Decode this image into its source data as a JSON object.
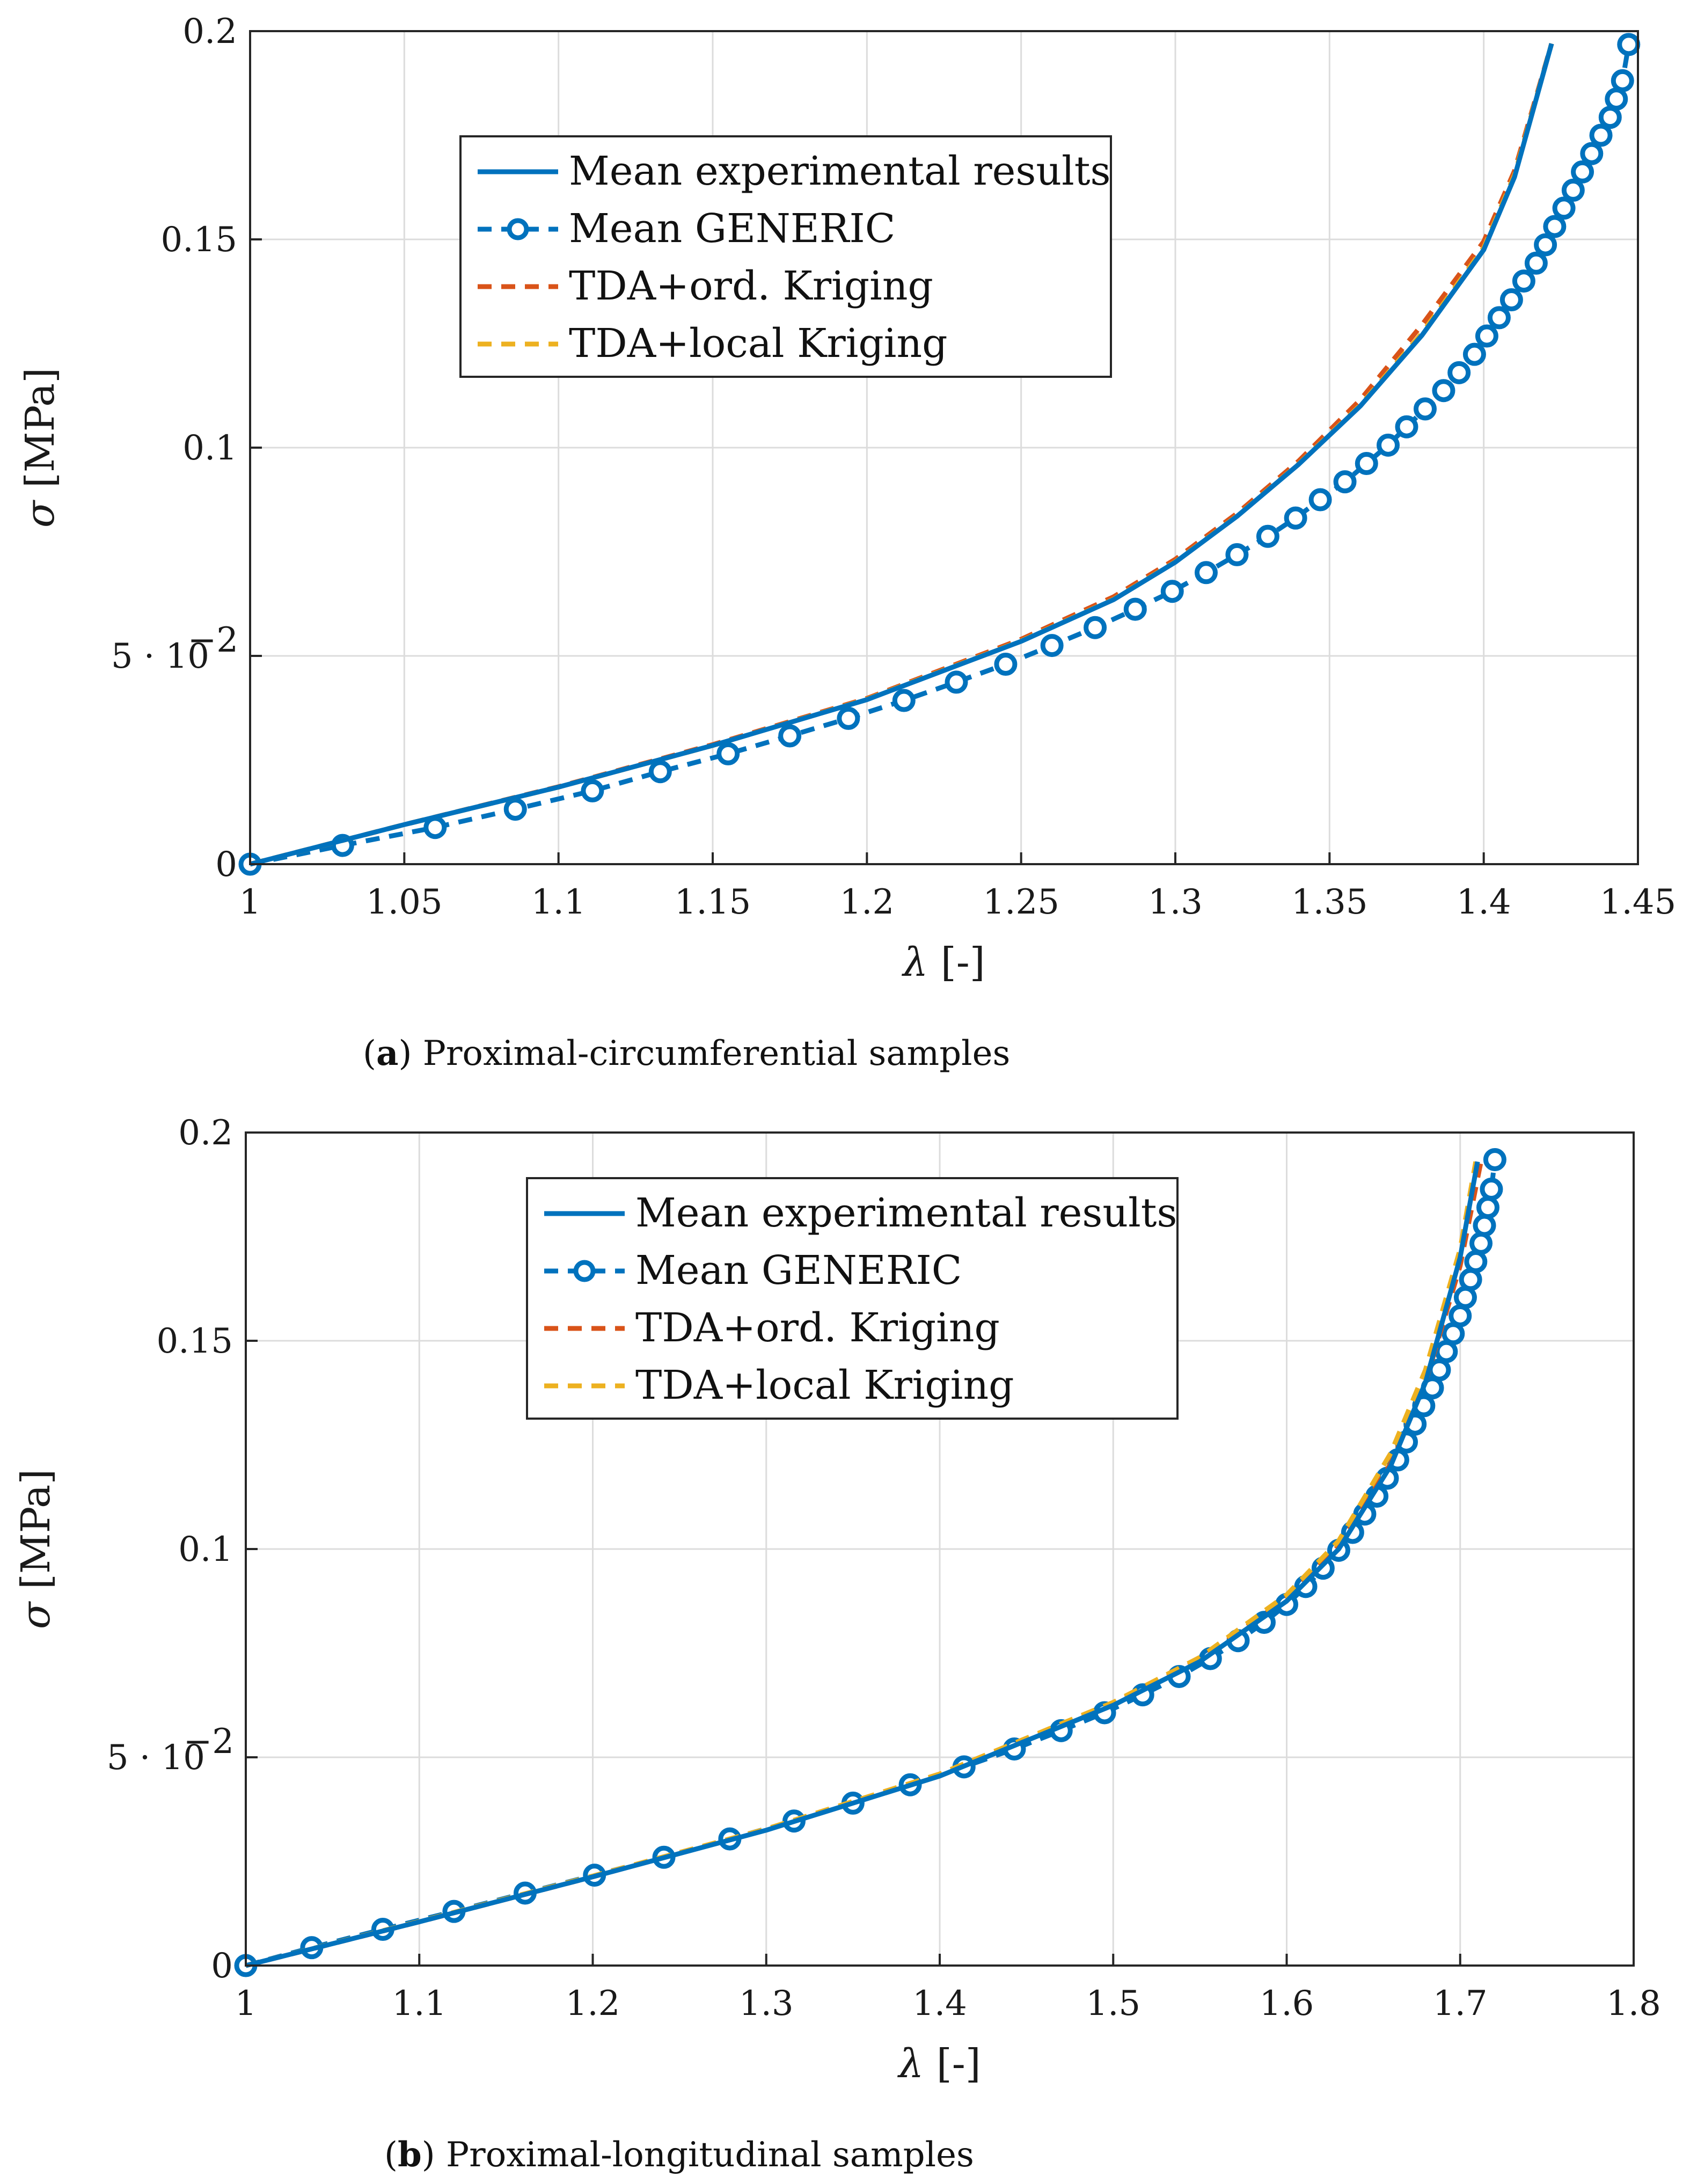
{
  "colors": {
    "experimental": "#0072BD",
    "generic": "#0072BD",
    "ordinary_kriging": "#D95319",
    "local_kriging": "#EDB120",
    "grid": "#dcdcdc",
    "frame": "#262626"
  },
  "chart_data": [
    {
      "type": "line",
      "caption_letter": "a",
      "caption_text": "Proximal-circumferential samples",
      "xlabel_sym": "λ",
      "xlabel_unit": "[-]",
      "ylabel_sym": "σ",
      "ylabel_unit": "[MPa]",
      "xlim": [
        1,
        1.45
      ],
      "ylim": [
        0,
        0.2
      ],
      "xticks": [
        1,
        1.05,
        1.1,
        1.15,
        1.2,
        1.25,
        1.3,
        1.35,
        1.4,
        1.45
      ],
      "xtick_labels": [
        "1",
        "1.05",
        "1.1",
        "1.15",
        "1.2",
        "1.25",
        "1.3",
        "1.35",
        "1.4",
        "1.45"
      ],
      "yticks": [
        0,
        0.05,
        0.1,
        0.15,
        0.2
      ],
      "ytick_labels": [
        "0",
        "5 · 10",
        "0.1",
        "0.15",
        "0.2"
      ],
      "ytick_exponents": [
        "",
        "−2",
        "",
        "",
        ""
      ],
      "legend": {
        "position": "top-left",
        "entries": [
          "Mean experimental results",
          "Mean GENERIC",
          "TDA+ord. Kriging",
          "TDA+local Kriging"
        ]
      },
      "series": [
        {
          "name": "Mean experimental results",
          "style": "solid",
          "x": [
            1.0,
            1.05,
            1.1,
            1.15,
            1.2,
            1.25,
            1.28,
            1.3,
            1.32,
            1.34,
            1.36,
            1.38,
            1.4,
            1.41,
            1.422
          ],
          "y": [
            0.0,
            0.0095,
            0.0185,
            0.0285,
            0.0395,
            0.0535,
            0.0635,
            0.0725,
            0.0835,
            0.096,
            0.11,
            0.127,
            0.1475,
            0.165,
            0.197
          ]
        },
        {
          "name": "Mean GENERIC",
          "style": "dashed-circle",
          "x": [
            1.0,
            1.03,
            1.06,
            1.086,
            1.111,
            1.133,
            1.155,
            1.175,
            1.194,
            1.212,
            1.229,
            1.245,
            1.26,
            1.274,
            1.287,
            1.299,
            1.31,
            1.32,
            1.33,
            1.339,
            1.347,
            1.355,
            1.362,
            1.369,
            1.375,
            1.381,
            1.387,
            1.392,
            1.397,
            1.401,
            1.405,
            1.409,
            1.413,
            1.417,
            1.42,
            1.423,
            1.426,
            1.429,
            1.432,
            1.435,
            1.438,
            1.441,
            1.443,
            1.445,
            1.447
          ],
          "y": [
            0.0,
            0.0045,
            0.0088,
            0.0132,
            0.0176,
            0.0222,
            0.0265,
            0.0308,
            0.035,
            0.0393,
            0.0437,
            0.048,
            0.0525,
            0.0568,
            0.0612,
            0.0655,
            0.07,
            0.0743,
            0.0787,
            0.0831,
            0.0875,
            0.0918,
            0.0962,
            0.1006,
            0.105,
            0.1093,
            0.1137,
            0.118,
            0.1224,
            0.1268,
            0.1312,
            0.1355,
            0.14,
            0.1443,
            0.1487,
            0.1531,
            0.1575,
            0.1618,
            0.1662,
            0.1706,
            0.175,
            0.1793,
            0.1837,
            0.1881,
            0.1968
          ]
        },
        {
          "name": "TDA+ord. Kriging",
          "style": "dashed",
          "x": [
            1.0,
            1.05,
            1.1,
            1.15,
            1.2,
            1.25,
            1.28,
            1.3,
            1.32,
            1.34,
            1.36,
            1.38,
            1.4,
            1.41,
            1.422
          ],
          "y": [
            0.0,
            0.0095,
            0.0186,
            0.0287,
            0.0398,
            0.054,
            0.0642,
            0.0732,
            0.0842,
            0.0968,
            0.1115,
            0.1295,
            0.1495,
            0.1665,
            0.197
          ]
        },
        {
          "name": "TDA+local Kriging",
          "style": "dashed",
          "x": [
            1.0,
            1.05,
            1.1,
            1.15,
            1.2,
            1.25,
            1.28,
            1.3,
            1.32,
            1.34,
            1.36,
            1.38,
            1.4,
            1.41,
            1.422
          ],
          "y": [
            0.0,
            0.0095,
            0.0185,
            0.0285,
            0.0396,
            0.0536,
            0.0636,
            0.0726,
            0.0836,
            0.0961,
            0.1102,
            0.1275,
            0.148,
            0.1655,
            0.197
          ]
        }
      ]
    },
    {
      "type": "line",
      "caption_letter": "b",
      "caption_text": "Proximal-longitudinal samples",
      "xlabel_sym": "λ",
      "xlabel_unit": "[-]",
      "ylabel_sym": "σ",
      "ylabel_unit": "[MPa]",
      "xlim": [
        1,
        1.8
      ],
      "ylim": [
        0,
        0.2
      ],
      "xticks": [
        1,
        1.1,
        1.2,
        1.3,
        1.4,
        1.5,
        1.6,
        1.7,
        1.8
      ],
      "xtick_labels": [
        "1",
        "1.1",
        "1.2",
        "1.3",
        "1.4",
        "1.5",
        "1.6",
        "1.7",
        "1.8"
      ],
      "yticks": [
        0,
        0.05,
        0.1,
        0.15,
        0.2
      ],
      "ytick_labels": [
        "0",
        "5 · 10",
        "0.1",
        "0.15",
        "0.2"
      ],
      "ytick_exponents": [
        "",
        "−2",
        "",
        "",
        ""
      ],
      "legend": {
        "position": "top-center",
        "entries": [
          "Mean experimental results",
          "Mean GENERIC",
          "TDA+ord. Kriging",
          "TDA+local Kriging"
        ]
      },
      "series": [
        {
          "name": "Mean experimental results",
          "style": "solid",
          "x": [
            1.0,
            1.1,
            1.2,
            1.3,
            1.4,
            1.5,
            1.55,
            1.6,
            1.63,
            1.66,
            1.68,
            1.7,
            1.71
          ],
          "y": [
            0.0,
            0.0105,
            0.0213,
            0.0325,
            0.0455,
            0.0625,
            0.073,
            0.0875,
            0.1,
            0.12,
            0.14,
            0.17,
            0.193
          ]
        },
        {
          "name": "Mean GENERIC",
          "style": "dashed-circle",
          "x": [
            1.0,
            1.038,
            1.079,
            1.12,
            1.161,
            1.201,
            1.241,
            1.279,
            1.316,
            1.35,
            1.383,
            1.414,
            1.443,
            1.47,
            1.495,
            1.517,
            1.538,
            1.556,
            1.572,
            1.587,
            1.6,
            1.611,
            1.621,
            1.63,
            1.638,
            1.645,
            1.652,
            1.658,
            1.664,
            1.669,
            1.674,
            1.679,
            1.684,
            1.688,
            1.692,
            1.696,
            1.7,
            1.703,
            1.706,
            1.709,
            1.712,
            1.714,
            1.716,
            1.718,
            1.72
          ],
          "y": [
            0.0,
            0.0043,
            0.0087,
            0.013,
            0.0174,
            0.0217,
            0.026,
            0.0304,
            0.0347,
            0.039,
            0.0434,
            0.0477,
            0.052,
            0.0564,
            0.0607,
            0.065,
            0.0694,
            0.0737,
            0.078,
            0.0824,
            0.0867,
            0.091,
            0.0954,
            0.0997,
            0.104,
            0.1084,
            0.1127,
            0.117,
            0.1214,
            0.1257,
            0.13,
            0.1344,
            0.1387,
            0.143,
            0.1474,
            0.1517,
            0.156,
            0.1604,
            0.1647,
            0.169,
            0.1734,
            0.1777,
            0.182,
            0.1864,
            0.1935
          ]
        },
        {
          "name": "TDA+ord. Kriging",
          "style": "dashed",
          "x": [
            1.0,
            1.1,
            1.2,
            1.3,
            1.4,
            1.5,
            1.55,
            1.6,
            1.63,
            1.66,
            1.68,
            1.7,
            1.712
          ],
          "y": [
            0.0,
            0.0105,
            0.0213,
            0.0326,
            0.0457,
            0.0628,
            0.0735,
            0.0882,
            0.1008,
            0.1205,
            0.14,
            0.168,
            0.193
          ]
        },
        {
          "name": "TDA+local Kriging",
          "style": "dashed",
          "x": [
            1.0,
            1.1,
            1.2,
            1.3,
            1.4,
            1.5,
            1.55,
            1.6,
            1.63,
            1.66,
            1.68,
            1.7,
            1.709
          ],
          "y": [
            0.0,
            0.0106,
            0.0215,
            0.0328,
            0.046,
            0.0632,
            0.074,
            0.089,
            0.102,
            0.123,
            0.143,
            0.172,
            0.193
          ]
        }
      ]
    }
  ]
}
